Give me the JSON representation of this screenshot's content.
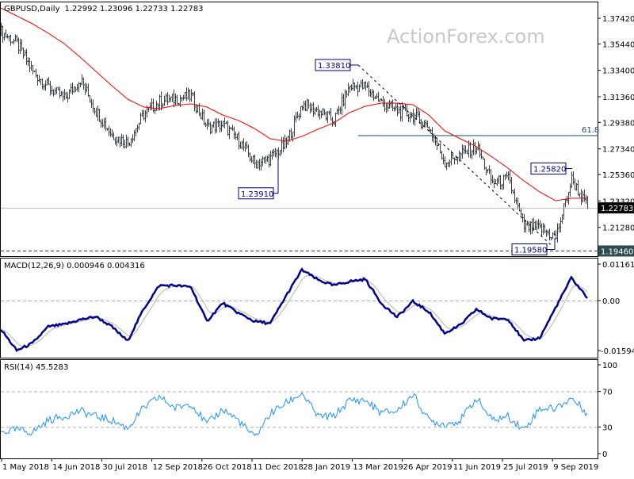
{
  "header": {
    "symbol_label": "GBPUSD,Daily",
    "ohlc": "1.22992 1.23096 1.22733 1.22783"
  },
  "watermark": "ActionForex.com",
  "colors": {
    "bars": "#1b4a66",
    "ma": "#ff0000",
    "macd": "#00008b",
    "signal": "#b4b4b4",
    "rsi": "#1e90ff",
    "annotation": "#000080"
  },
  "chart_data": [
    {
      "type": "line",
      "title": "GBPUSD,Daily",
      "subtitle": "1.22992 1.23096 1.22733 1.22783",
      "x": [
        "2018-04-30",
        "2018-05-14",
        "2018-05-28",
        "2018-06-11",
        "2018-06-26",
        "2018-07-10",
        "2018-07-24",
        "2018-08-07",
        "2018-08-22",
        "2018-09-05",
        "2018-09-19",
        "2018-10-03",
        "2018-10-18",
        "2018-11-01",
        "2018-11-15",
        "2018-11-29",
        "2018-12-13",
        "2018-12-28",
        "2019-01-11",
        "2019-01-25",
        "2019-02-08",
        "2019-02-22",
        "2019-03-08",
        "2019-03-22",
        "2019-04-05",
        "2019-04-19",
        "2019-05-03",
        "2019-05-17",
        "2019-06-03",
        "2019-06-17",
        "2019-07-01",
        "2019-07-15",
        "2019-07-29",
        "2019-08-12",
        "2019-08-26",
        "2019-09-10",
        "2019-09-18",
        "2019-09-25"
      ],
      "series": [
        {
          "kind": "close",
          "values": [
            1.364,
            1.3546,
            1.333,
            1.321,
            1.312,
            1.327,
            1.3026,
            1.284,
            1.278,
            1.3,
            1.31,
            1.312,
            1.314,
            1.29,
            1.292,
            1.28,
            1.262,
            1.266,
            1.278,
            1.308,
            1.3026,
            1.295,
            1.322,
            1.321,
            1.309,
            1.3026,
            1.299,
            1.29,
            1.2628,
            1.269,
            1.275,
            1.247,
            1.25,
            1.213,
            1.212,
            1.205,
            1.25,
            1.22783
          ]
        },
        {
          "kind": "moving-average",
          "values": [
            1.3822,
            1.376,
            1.3699,
            1.3626,
            1.3546,
            1.3442,
            1.3332,
            1.3222,
            1.3118,
            1.3057,
            1.3044,
            1.3069,
            1.3081,
            1.3057,
            1.2995,
            1.2953,
            1.2891,
            1.2812,
            1.2793,
            1.283,
            1.2885,
            1.2934,
            1.3014,
            1.3063,
            1.3087,
            1.3087,
            1.3075,
            1.2995,
            1.2873,
            1.2812,
            1.2751,
            1.2671,
            1.2585,
            1.2487,
            1.2402,
            1.2334,
            1.2353,
            1.2353
          ]
        }
      ],
      "yticks": [
        "1.37420",
        "1.35440",
        "1.33400",
        "1.31360",
        "1.29380",
        "1.27340",
        "1.25360",
        "1.23320",
        "1.21280"
      ],
      "ylim": [
        1.1925,
        1.388
      ],
      "annotations": [
        {
          "label": "1.33810",
          "value": 1.3381
        },
        {
          "label": "1.23910",
          "value": 1.2391
        },
        {
          "label": "1.25820",
          "value": 1.2582
        },
        {
          "label": "1.19580",
          "value": 1.1958
        },
        {
          "label": "61.8",
          "value": 1.2836
        }
      ],
      "current_price": "1.22783",
      "support_level": "1.19460",
      "xtick_labels": [
        "1 May 2018",
        "14 Jun 2018",
        "30 Jul 2018",
        "12 Sep 2018",
        "26 Oct 2018",
        "11 Dec 2018",
        "28 Jan 2019",
        "13 Mar 2019",
        "26 Apr 2019",
        "11 Jun 2019",
        "25 Jul 2019",
        "9 Sep 2019"
      ]
    },
    {
      "type": "line",
      "title": "MACD(12,26,9) 0.000946 0.004316",
      "series": [
        {
          "name": "MACD",
          "values": [
            -0.0091,
            -0.0159,
            -0.0136,
            -0.0083,
            -0.0076,
            -0.0061,
            -0.0051,
            -0.0083,
            -0.0129,
            -0.0028,
            0.0048,
            0.0048,
            0.0043,
            -0.0066,
            -0.0008,
            -0.004,
            -0.0066,
            -0.0073,
            0.0015,
            0.0098,
            0.0066,
            0.0048,
            0.0061,
            0.0068,
            -0.0008,
            -0.0053,
            -0.0003,
            -0.0035,
            -0.0104,
            -0.0078,
            -0.0028,
            -0.0058,
            -0.0058,
            -0.0129,
            -0.0119,
            -0.0023,
            0.0072,
            0.000946
          ]
        }
      ],
      "yticks": [
        "0.011619",
        "0.00",
        "-0.015949"
      ],
      "ylim": [
        -0.0165,
        0.0133
      ]
    },
    {
      "type": "line",
      "title": "RSI(14) 45.5283",
      "series": [
        {
          "name": "RSI(14)",
          "values": [
            24,
            27,
            24,
            37.5,
            42,
            48,
            42,
            37.5,
            28.6,
            51,
            64,
            51,
            57,
            33,
            50,
            37.5,
            18,
            45,
            57,
            68,
            42,
            42,
            60,
            60,
            46,
            48,
            67,
            37.5,
            33,
            37.5,
            62.5,
            37.5,
            42,
            27,
            51,
            51,
            62.5,
            45.5283
          ]
        }
      ],
      "yticks": [
        "100",
        "70",
        "30",
        "0"
      ],
      "levels": [
        70,
        30
      ],
      "ylim": [
        0,
        100
      ]
    }
  ]
}
